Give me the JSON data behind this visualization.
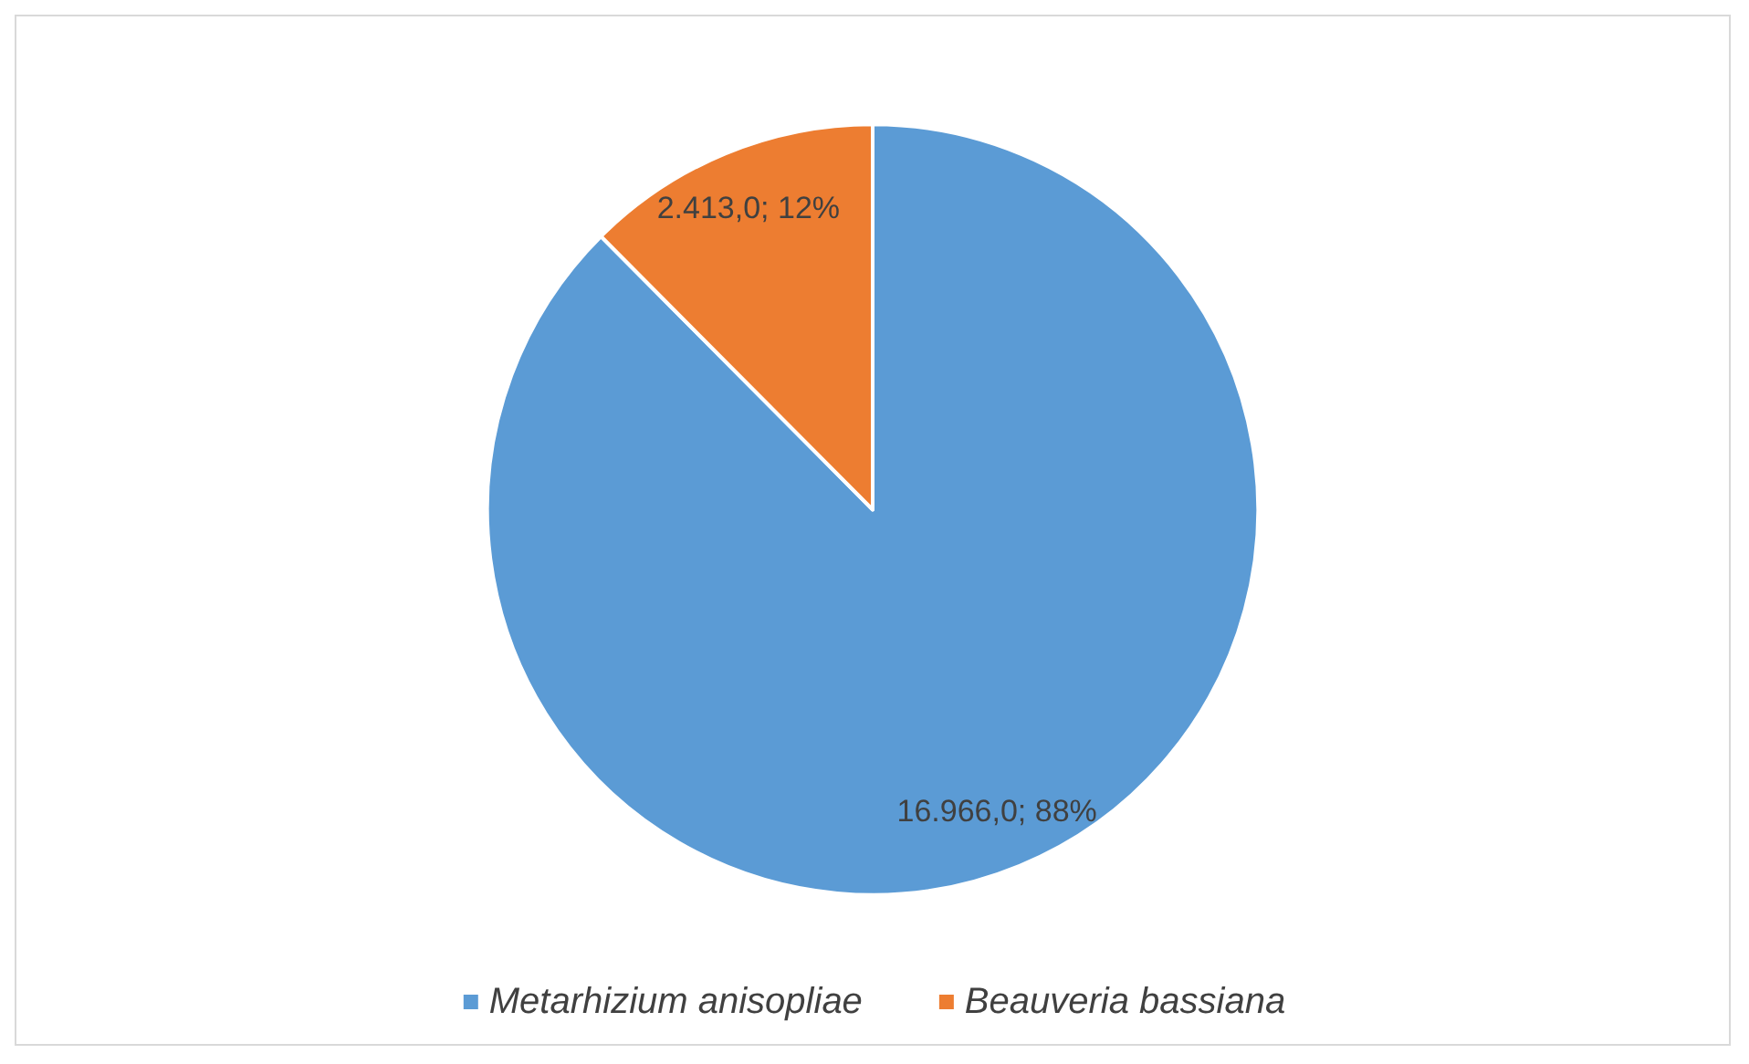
{
  "chart_data": {
    "type": "pie",
    "categories": [
      "Metarhizium anisopliae",
      "Beauveria bassiana"
    ],
    "values": [
      16966.0,
      2413.0
    ],
    "colors": [
      "#5b9bd5",
      "#ed7d31"
    ],
    "value_labels": [
      "16.966,0; 88%",
      "2.413,0; 12%"
    ],
    "legend": "bottom"
  }
}
